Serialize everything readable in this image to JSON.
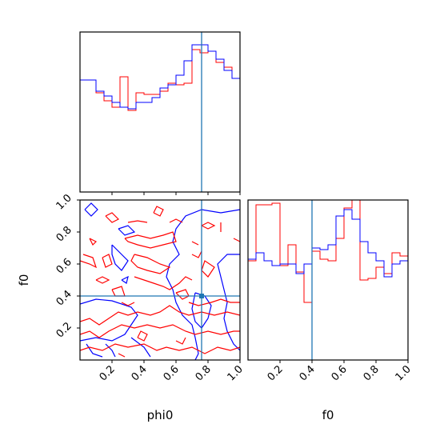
{
  "chart_data": {
    "type": "corner",
    "parameters": [
      "phi0",
      "f0"
    ],
    "truth": {
      "phi0": 0.76,
      "f0": 0.4
    },
    "colors": {
      "blue": "#0000ff",
      "red": "#ff0000",
      "truth": "#1f77b4"
    },
    "axes": {
      "x_label_phi0": "phi0",
      "x_label_f0": "f0",
      "y_label_f0": "f0",
      "ticks": [
        "0.2",
        "0.4",
        "0.6",
        "0.8",
        "1.0"
      ],
      "xlim": [
        0,
        1
      ],
      "ylim": [
        0,
        1
      ]
    },
    "hist_phi0": {
      "bins": 20,
      "range": [
        0,
        1
      ],
      "blue": [
        0.7,
        0.7,
        0.63,
        0.6,
        0.56,
        0.53,
        0.52,
        0.56,
        0.56,
        0.59,
        0.65,
        0.67,
        0.73,
        0.82,
        0.92,
        0.92,
        0.88,
        0.83,
        0.76,
        0.71
      ],
      "red": [
        0.7,
        0.7,
        0.62,
        0.57,
        0.53,
        0.72,
        0.51,
        0.62,
        0.61,
        0.61,
        0.63,
        0.68,
        0.67,
        0.68,
        0.89,
        0.87,
        0.88,
        0.81,
        0.78,
        0.71
      ]
    },
    "hist_f0": {
      "bins": 20,
      "range": [
        0,
        1
      ],
      "blue": [
        0.63,
        0.67,
        0.62,
        0.59,
        0.6,
        0.6,
        0.54,
        0.6,
        0.7,
        0.69,
        0.72,
        0.9,
        0.94,
        0.88,
        0.74,
        0.67,
        0.62,
        0.52,
        0.6,
        0.62
      ],
      "red": [
        0.62,
        0.97,
        0.97,
        0.98,
        0.59,
        0.72,
        0.55,
        0.36,
        0.68,
        0.63,
        0.62,
        0.76,
        0.95,
        1.0,
        0.5,
        0.51,
        0.58,
        0.54,
        0.67,
        0.65
      ]
    },
    "contours_2d": [
      {
        "color": "blue",
        "points": [
          [
            0.03,
            0.94
          ],
          [
            0.07,
            0.9
          ],
          [
            0.11,
            0.94
          ],
          [
            0.07,
            0.98
          ],
          [
            0.03,
            0.94
          ]
        ]
      },
      {
        "color": "blue",
        "points": [
          [
            0.24,
            0.82
          ],
          [
            0.28,
            0.78
          ],
          [
            0.34,
            0.8
          ],
          [
            0.3,
            0.84
          ],
          [
            0.24,
            0.82
          ]
        ]
      },
      {
        "color": "blue",
        "points": [
          [
            0.2,
            0.72
          ],
          [
            0.26,
            0.66
          ],
          [
            0.3,
            0.62
          ],
          [
            0.26,
            0.56
          ],
          [
            0.22,
            0.6
          ],
          [
            0.2,
            0.66
          ],
          [
            0.2,
            0.72
          ]
        ]
      },
      {
        "color": "blue",
        "points": [
          [
            0.26,
            0.5
          ],
          [
            0.29,
            0.48
          ],
          [
            0.3,
            0.52
          ],
          [
            0.26,
            0.5
          ]
        ]
      },
      {
        "color": "blue",
        "points": [
          [
            0.0,
            0.35
          ],
          [
            0.1,
            0.38
          ],
          [
            0.2,
            0.37
          ],
          [
            0.32,
            0.33
          ],
          [
            0.36,
            0.28
          ],
          [
            0.32,
            0.22
          ],
          [
            0.28,
            0.16
          ],
          [
            0.2,
            0.12
          ],
          [
            0.1,
            0.14
          ],
          [
            0.0,
            0.12
          ]
        ]
      },
      {
        "color": "blue",
        "points": [
          [
            0.32,
            0.14
          ],
          [
            0.4,
            0.08
          ],
          [
            0.44,
            0.02
          ]
        ]
      },
      {
        "color": "blue",
        "points": [
          [
            0.16,
            0.1
          ],
          [
            0.2,
            0.06
          ],
          [
            0.22,
            0.02
          ]
        ]
      },
      {
        "color": "blue",
        "points": [
          [
            0.04,
            0.1
          ],
          [
            0.08,
            0.04
          ],
          [
            0.14,
            0.02
          ]
        ]
      },
      {
        "color": "blue",
        "points": [
          [
            1.0,
            0.94
          ],
          [
            0.88,
            0.92
          ],
          [
            0.76,
            0.94
          ],
          [
            0.66,
            0.9
          ],
          [
            0.6,
            0.82
          ],
          [
            0.58,
            0.74
          ],
          [
            0.62,
            0.66
          ],
          [
            0.56,
            0.6
          ],
          [
            0.54,
            0.52
          ],
          [
            0.58,
            0.44
          ],
          [
            0.6,
            0.36
          ],
          [
            0.64,
            0.28
          ],
          [
            0.7,
            0.22
          ],
          [
            0.72,
            0.14
          ],
          [
            0.74,
            0.04
          ],
          [
            0.72,
            0.0
          ]
        ]
      },
      {
        "color": "blue",
        "points": [
          [
            1.0,
            0.66
          ],
          [
            0.92,
            0.66
          ],
          [
            0.86,
            0.6
          ],
          [
            0.88,
            0.52
          ],
          [
            0.9,
            0.44
          ],
          [
            0.92,
            0.36
          ],
          [
            0.9,
            0.26
          ],
          [
            0.92,
            0.18
          ],
          [
            0.96,
            0.1
          ],
          [
            1.0,
            0.06
          ]
        ]
      },
      {
        "color": "blue",
        "points": [
          [
            0.72,
            0.42
          ],
          [
            0.78,
            0.4
          ],
          [
            0.82,
            0.34
          ],
          [
            0.8,
            0.26
          ],
          [
            0.76,
            0.2
          ],
          [
            0.72,
            0.24
          ],
          [
            0.7,
            0.32
          ],
          [
            0.72,
            0.42
          ]
        ]
      },
      {
        "color": "red",
        "points": [
          [
            0.16,
            0.9
          ],
          [
            0.2,
            0.92
          ],
          [
            0.24,
            0.88
          ],
          [
            0.2,
            0.86
          ],
          [
            0.16,
            0.9
          ]
        ]
      },
      {
        "color": "red",
        "points": [
          [
            0.3,
            0.86
          ],
          [
            0.36,
            0.87
          ],
          [
            0.42,
            0.86
          ]
        ]
      },
      {
        "color": "red",
        "points": [
          [
            0.46,
            0.92
          ],
          [
            0.5,
            0.9
          ],
          [
            0.52,
            0.94
          ],
          [
            0.48,
            0.96
          ],
          [
            0.46,
            0.92
          ]
        ]
      },
      {
        "color": "red",
        "points": [
          [
            0.56,
            0.86
          ],
          [
            0.6,
            0.88
          ],
          [
            0.64,
            0.86
          ]
        ]
      },
      {
        "color": "red",
        "points": [
          [
            0.76,
            0.84
          ],
          [
            0.8,
            0.82
          ],
          [
            0.84,
            0.84
          ],
          [
            0.8,
            0.86
          ],
          [
            0.76,
            0.84
          ]
        ]
      },
      {
        "color": "red",
        "points": [
          [
            0.7,
            0.74
          ],
          [
            0.74,
            0.72
          ]
        ]
      },
      {
        "color": "red",
        "points": [
          [
            0.28,
            0.76
          ],
          [
            0.36,
            0.78
          ],
          [
            0.44,
            0.76
          ],
          [
            0.52,
            0.78
          ],
          [
            0.58,
            0.8
          ],
          [
            0.6,
            0.74
          ],
          [
            0.52,
            0.72
          ],
          [
            0.44,
            0.7
          ],
          [
            0.36,
            0.72
          ],
          [
            0.3,
            0.74
          ],
          [
            0.28,
            0.76
          ]
        ]
      },
      {
        "color": "red",
        "points": [
          [
            0.06,
            0.76
          ],
          [
            0.08,
            0.72
          ],
          [
            0.1,
            0.74
          ],
          [
            0.06,
            0.76
          ]
        ]
      },
      {
        "color": "red",
        "points": [
          [
            0.0,
            0.62
          ],
          [
            0.06,
            0.6
          ],
          [
            0.1,
            0.58
          ],
          [
            0.08,
            0.64
          ],
          [
            0.02,
            0.66
          ]
        ]
      },
      {
        "color": "red",
        "points": [
          [
            0.14,
            0.64
          ],
          [
            0.18,
            0.66
          ],
          [
            0.2,
            0.6
          ],
          [
            0.16,
            0.58
          ],
          [
            0.14,
            0.64
          ]
        ]
      },
      {
        "color": "red",
        "points": [
          [
            0.34,
            0.66
          ],
          [
            0.42,
            0.64
          ],
          [
            0.5,
            0.6
          ],
          [
            0.56,
            0.58
          ],
          [
            0.5,
            0.54
          ],
          [
            0.42,
            0.56
          ],
          [
            0.36,
            0.58
          ],
          [
            0.32,
            0.62
          ],
          [
            0.34,
            0.66
          ]
        ]
      },
      {
        "color": "red",
        "points": [
          [
            0.34,
            0.52
          ],
          [
            0.4,
            0.5
          ],
          [
            0.46,
            0.48
          ],
          [
            0.52,
            0.46
          ],
          [
            0.56,
            0.44
          ],
          [
            0.62,
            0.48
          ],
          [
            0.66,
            0.52
          ],
          [
            0.7,
            0.5
          ]
        ]
      },
      {
        "color": "red",
        "points": [
          [
            0.76,
            0.56
          ],
          [
            0.8,
            0.52
          ],
          [
            0.84,
            0.58
          ],
          [
            0.78,
            0.62
          ],
          [
            0.76,
            0.56
          ]
        ]
      },
      {
        "color": "red",
        "points": [
          [
            0.7,
            0.66
          ],
          [
            0.74,
            0.64
          ],
          [
            0.76,
            0.68
          ]
        ]
      },
      {
        "color": "red",
        "points": [
          [
            0.1,
            0.5
          ],
          [
            0.14,
            0.48
          ],
          [
            0.18,
            0.5
          ],
          [
            0.14,
            0.52
          ],
          [
            0.1,
            0.5
          ]
        ]
      },
      {
        "color": "red",
        "points": [
          [
            0.2,
            0.44
          ],
          [
            0.26,
            0.46
          ],
          [
            0.28,
            0.4
          ],
          [
            0.22,
            0.4
          ],
          [
            0.2,
            0.44
          ]
        ]
      },
      {
        "color": "red",
        "points": [
          [
            0.6,
            0.42
          ],
          [
            0.64,
            0.38
          ],
          [
            0.68,
            0.4
          ],
          [
            0.66,
            0.44
          ],
          [
            0.6,
            0.42
          ]
        ]
      },
      {
        "color": "red",
        "points": [
          [
            0.68,
            0.36
          ],
          [
            0.74,
            0.34
          ],
          [
            0.82,
            0.36
          ],
          [
            0.88,
            0.38
          ],
          [
            0.94,
            0.36
          ],
          [
            1.0,
            0.36
          ]
        ]
      },
      {
        "color": "red",
        "points": [
          [
            0.0,
            0.24
          ],
          [
            0.06,
            0.26
          ],
          [
            0.12,
            0.22
          ],
          [
            0.18,
            0.26
          ],
          [
            0.24,
            0.3
          ],
          [
            0.3,
            0.28
          ],
          [
            0.36,
            0.3
          ],
          [
            0.44,
            0.28
          ],
          [
            0.5,
            0.3
          ],
          [
            0.56,
            0.34
          ],
          [
            0.62,
            0.3
          ],
          [
            0.68,
            0.28
          ],
          [
            0.76,
            0.3
          ],
          [
            0.84,
            0.28
          ],
          [
            0.92,
            0.3
          ],
          [
            1.0,
            0.28
          ]
        ]
      },
      {
        "color": "red",
        "points": [
          [
            0.0,
            0.16
          ],
          [
            0.06,
            0.18
          ],
          [
            0.12,
            0.14
          ],
          [
            0.18,
            0.18
          ],
          [
            0.26,
            0.22
          ],
          [
            0.34,
            0.2
          ],
          [
            0.42,
            0.22
          ],
          [
            0.5,
            0.2
          ],
          [
            0.58,
            0.22
          ],
          [
            0.66,
            0.18
          ],
          [
            0.72,
            0.16
          ],
          [
            0.8,
            0.18
          ],
          [
            0.88,
            0.16
          ],
          [
            0.96,
            0.18
          ],
          [
            1.0,
            0.18
          ]
        ]
      },
      {
        "color": "red",
        "points": [
          [
            0.0,
            0.06
          ],
          [
            0.06,
            0.08
          ],
          [
            0.14,
            0.06
          ],
          [
            0.22,
            0.1
          ],
          [
            0.3,
            0.08
          ],
          [
            0.4,
            0.1
          ],
          [
            0.48,
            0.06
          ],
          [
            0.54,
            0.08
          ],
          [
            0.62,
            0.06
          ],
          [
            0.7,
            0.08
          ],
          [
            0.78,
            0.04
          ],
          [
            0.86,
            0.08
          ],
          [
            0.94,
            0.06
          ],
          [
            1.0,
            0.08
          ]
        ]
      },
      {
        "color": "red",
        "points": [
          [
            0.36,
            0.14
          ],
          [
            0.4,
            0.12
          ],
          [
            0.42,
            0.16
          ],
          [
            0.38,
            0.18
          ],
          [
            0.36,
            0.14
          ]
        ]
      },
      {
        "color": "red",
        "points": [
          [
            0.6,
            0.12
          ],
          [
            0.64,
            0.1
          ],
          [
            0.66,
            0.14
          ]
        ]
      },
      {
        "color": "red",
        "points": [
          [
            0.24,
            0.04
          ],
          [
            0.28,
            0.02
          ]
        ]
      },
      {
        "color": "red",
        "points": [
          [
            0.88,
            0.86
          ],
          [
            0.88,
            0.8
          ]
        ]
      },
      {
        "color": "red",
        "points": [
          [
            0.26,
            0.36
          ],
          [
            0.3,
            0.34
          ],
          [
            0.34,
            0.36
          ]
        ]
      },
      {
        "color": "red",
        "points": [
          [
            0.96,
            0.76
          ],
          [
            1.0,
            0.74
          ]
        ]
      }
    ]
  }
}
